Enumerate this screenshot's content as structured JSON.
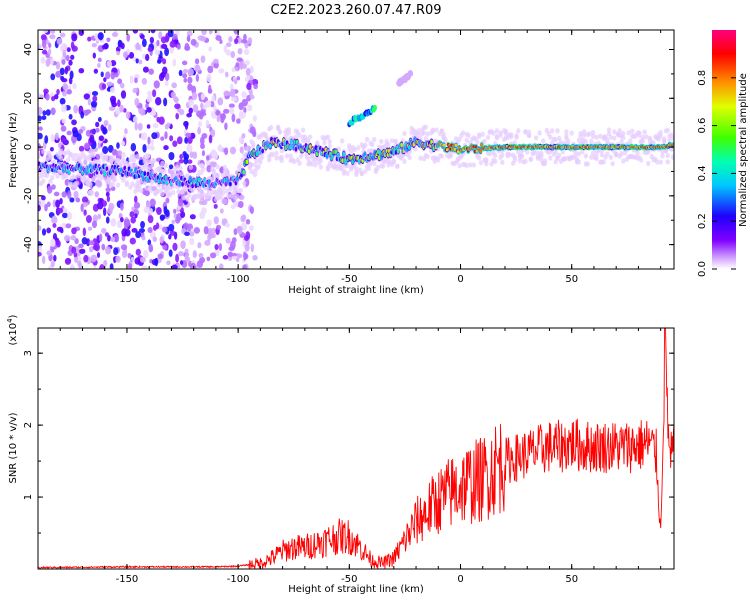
{
  "title": "C2E2.2023.260.07.47.R09",
  "chart_data": [
    {
      "type": "heatmap",
      "title": "C2E2.2023.260.07.47.R09",
      "xlabel": "Height of straight line (km)",
      "ylabel": "Frequency (Hz)",
      "xlim": [
        -190,
        96
      ],
      "ylim": [
        -50,
        48
      ],
      "x_ticks": [
        -150,
        -100,
        -50,
        0,
        50
      ],
      "y_ticks": [
        -40,
        -20,
        0,
        20,
        40
      ],
      "colorbar": {
        "label": "Normalized spectral amplitude",
        "ticks": [
          0.0,
          0.2,
          0.4,
          0.6,
          0.8
        ],
        "range": [
          0,
          1
        ],
        "colormap": [
          "#ffffff",
          "#8000ff",
          "#0000ff",
          "#00c8ff",
          "#00ff80",
          "#80ff00",
          "#ffff00",
          "#ff8000",
          "#ff0000",
          "#ff0080"
        ]
      },
      "features": {
        "noise_region_x": [
          -190,
          -100
        ],
        "main_ridge": [
          {
            "x": -190,
            "y": -8
          },
          {
            "x": -150,
            "y": -10
          },
          {
            "x": -130,
            "y": -14
          },
          {
            "x": -110,
            "y": -15
          },
          {
            "x": -100,
            "y": -14
          },
          {
            "x": -95,
            "y": -4
          },
          {
            "x": -85,
            "y": 2
          },
          {
            "x": -70,
            "y": 0
          },
          {
            "x": -50,
            "y": -5
          },
          {
            "x": -30,
            "y": -2
          },
          {
            "x": -20,
            "y": 2
          },
          {
            "x": 0,
            "y": -1
          },
          {
            "x": 20,
            "y": 0
          },
          {
            "x": 50,
            "y": 0
          },
          {
            "x": 90,
            "y": 0
          },
          {
            "x": 96,
            "y": 1
          }
        ],
        "upper_streak": [
          {
            "x": -50,
            "y": 10
          },
          {
            "x": -38,
            "y": 16
          }
        ],
        "faint_streak": [
          {
            "x": -28,
            "y": 26
          },
          {
            "x": -22,
            "y": 30
          }
        ]
      }
    },
    {
      "type": "line",
      "xlabel": "Height of straight line (km)",
      "ylabel": "SNR (10 * v/v)",
      "y_multiplier": "(x10^4)",
      "xlim": [
        -190,
        96
      ],
      "ylim": [
        0,
        3.35
      ],
      "x_ticks": [
        -150,
        -100,
        -50,
        0,
        50
      ],
      "y_ticks": [
        1,
        2,
        3
      ],
      "series": [
        {
          "color": "#ff0000",
          "x": [
            -190,
            -150,
            -110,
            -100,
            -90,
            -85,
            -80,
            -75,
            -70,
            -65,
            -60,
            -55,
            -50,
            -45,
            -40,
            -35,
            -30,
            -25,
            -20,
            -15,
            -10,
            -5,
            0,
            5,
            10,
            15,
            20,
            25,
            30,
            35,
            40,
            45,
            50,
            55,
            60,
            65,
            70,
            75,
            80,
            85,
            88,
            90,
            92,
            94,
            96
          ],
          "y": [
            0.02,
            0.03,
            0.03,
            0.04,
            0.08,
            0.15,
            0.25,
            0.3,
            0.3,
            0.35,
            0.4,
            0.45,
            0.45,
            0.3,
            0.12,
            0.08,
            0.15,
            0.4,
            0.65,
            0.8,
            0.95,
            1.05,
            1.15,
            1.2,
            1.25,
            1.4,
            1.5,
            1.55,
            1.6,
            1.65,
            1.7,
            1.7,
            1.75,
            1.7,
            1.7,
            1.7,
            1.7,
            1.7,
            1.72,
            1.75,
            1.6,
            0.5,
            3.2,
            1.5,
            1.7
          ]
        }
      ]
    }
  ]
}
